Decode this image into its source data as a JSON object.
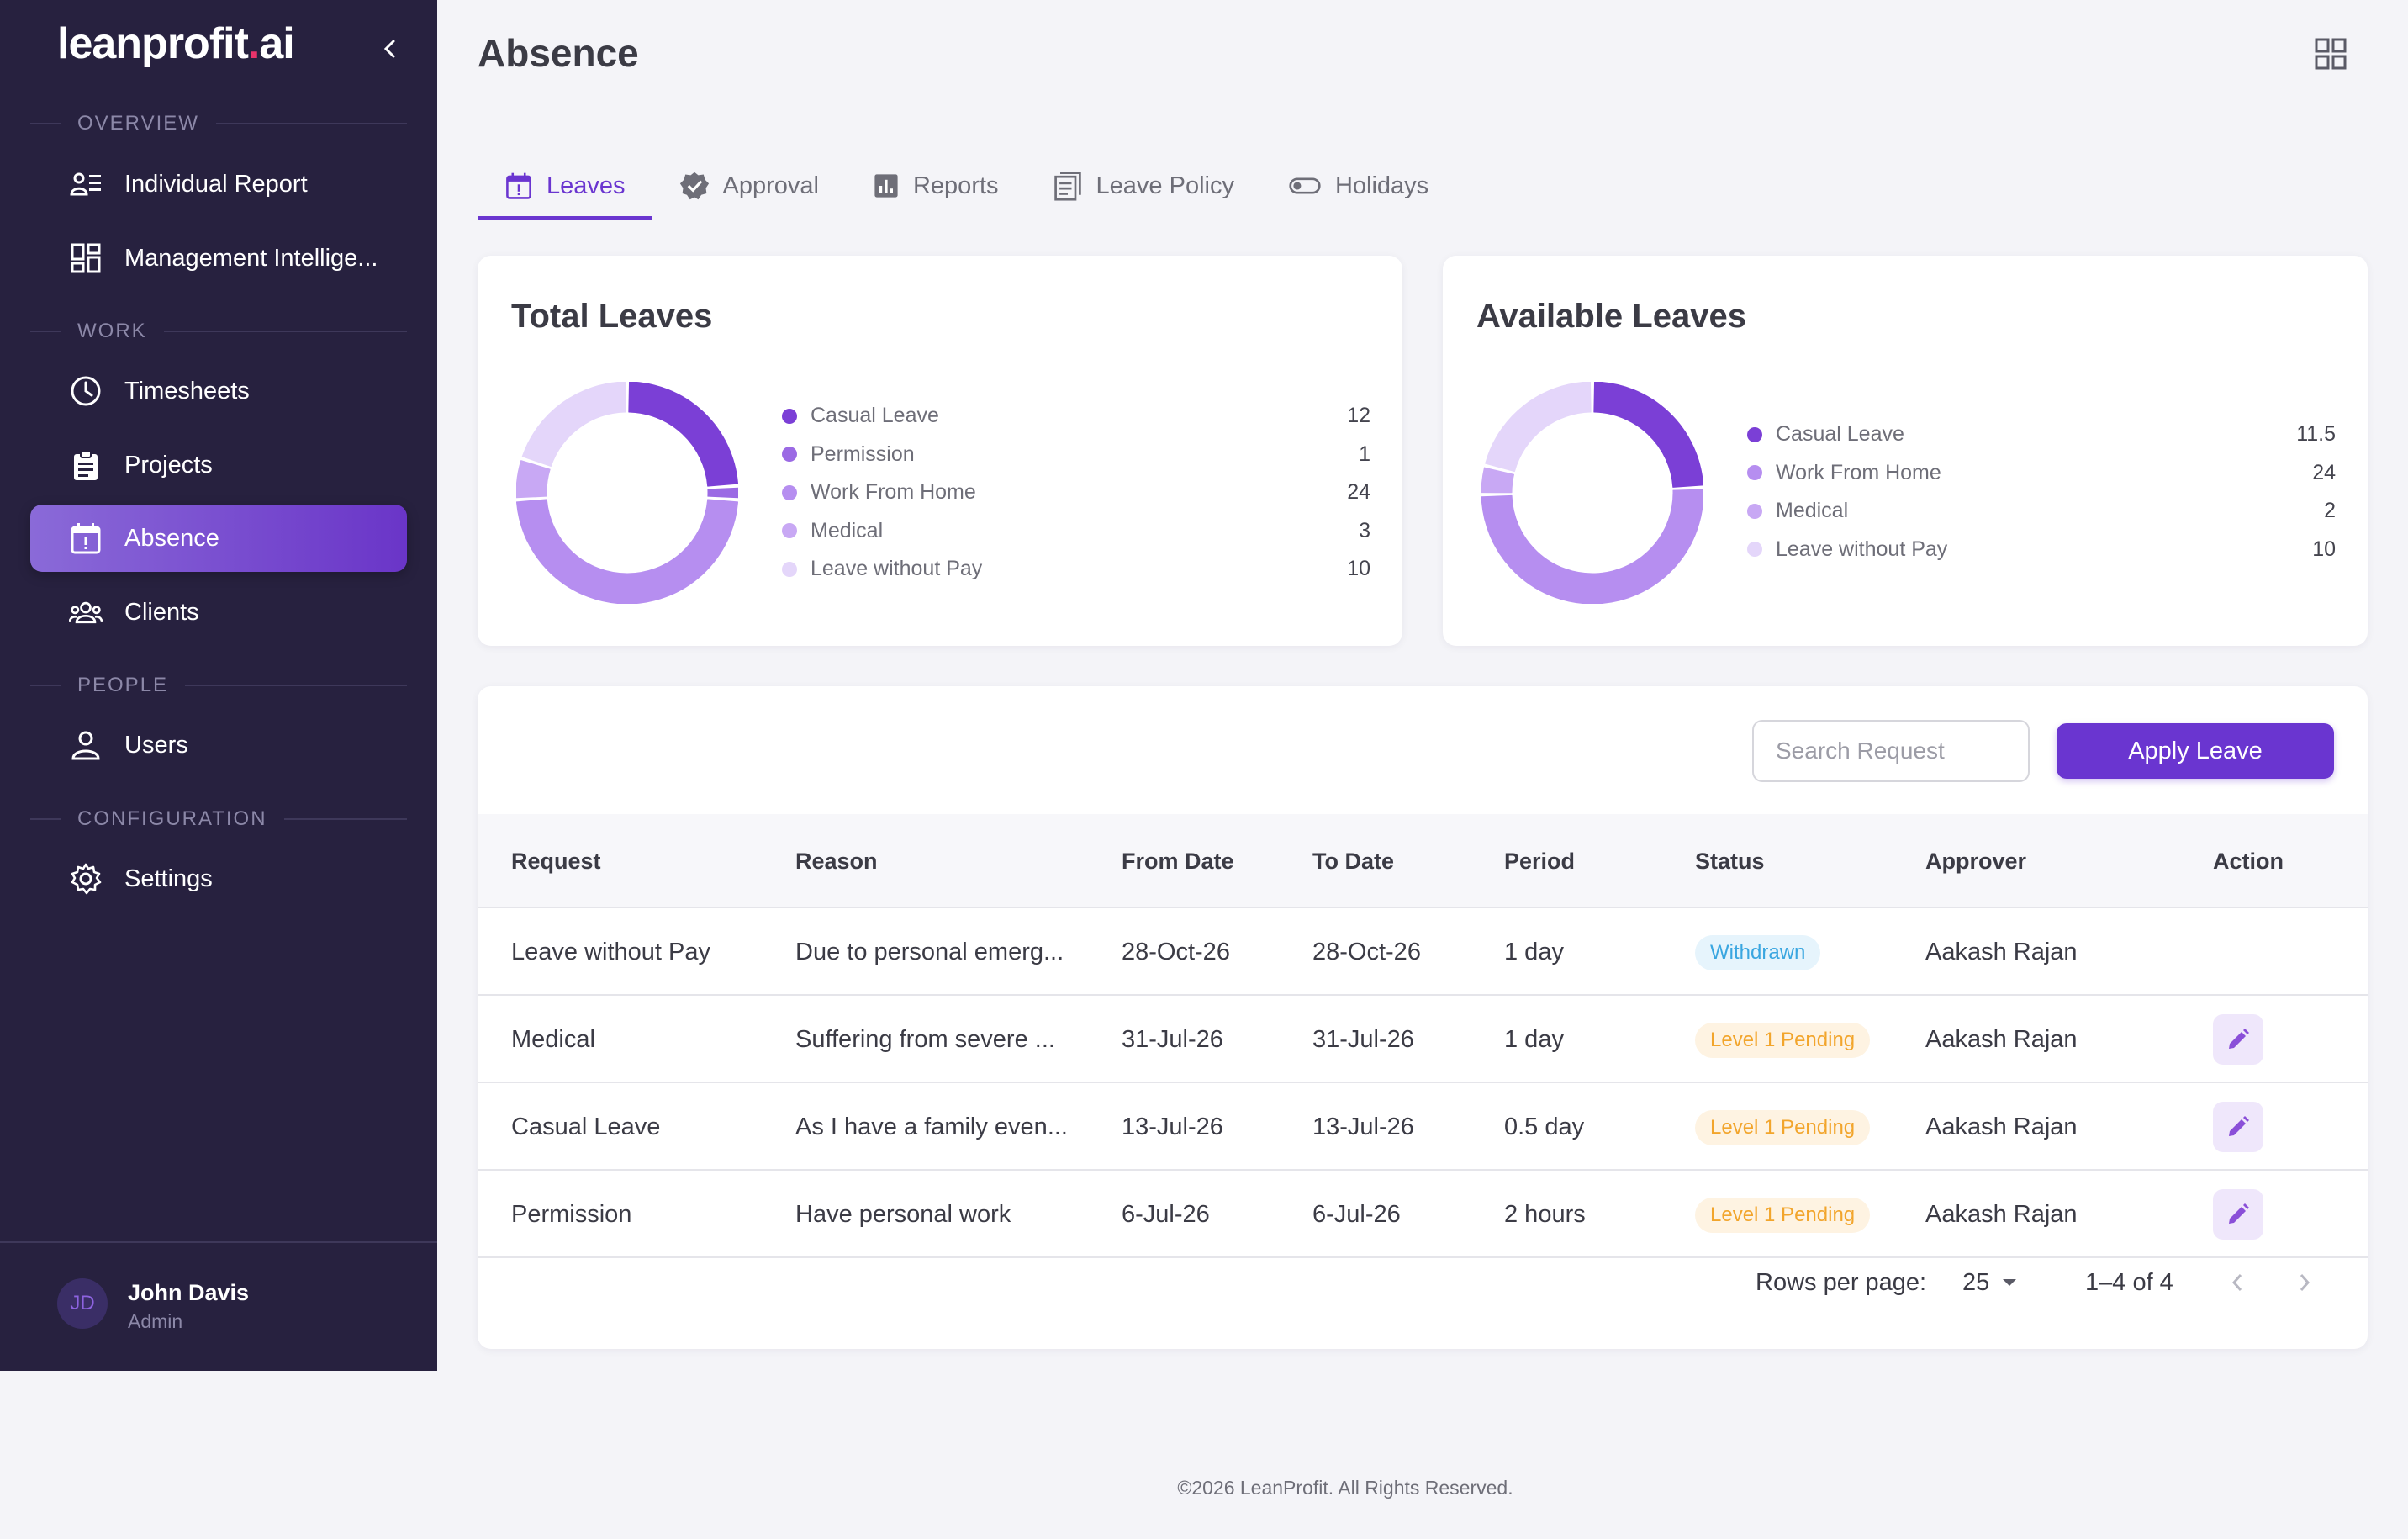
{
  "app": {
    "logo_main": "leanprofit",
    "logo_dot": ".",
    "logo_suffix": "ai",
    "brand_color": "#6a35d0"
  },
  "sidebar": {
    "sections": {
      "overview": "OVERVIEW",
      "work": "WORK",
      "people": "PEOPLE",
      "configuration": "CONFIGURATION"
    },
    "items": [
      {
        "label": "Individual Report",
        "icon": "report-list-icon"
      },
      {
        "label": "Management Intellige...",
        "icon": "dashboard-icon"
      },
      {
        "label": "Timesheets",
        "icon": "clock-icon"
      },
      {
        "label": "Projects",
        "icon": "clipboard-icon"
      },
      {
        "label": "Absence",
        "icon": "calendar-alert-icon",
        "active": true
      },
      {
        "label": "Clients",
        "icon": "group-icon"
      },
      {
        "label": "Users",
        "icon": "person-icon"
      },
      {
        "label": "Settings",
        "icon": "gear-icon"
      }
    ],
    "user": {
      "initials": "JD",
      "name": "John Davis",
      "role": "Admin"
    }
  },
  "header": {
    "title": "Absence"
  },
  "tabs": [
    {
      "label": "Leaves",
      "icon": "calendar-alert-icon",
      "active": true
    },
    {
      "label": "Approval",
      "icon": "verified-icon"
    },
    {
      "label": "Reports",
      "icon": "bar-chart-icon"
    },
    {
      "label": "Leave Policy",
      "icon": "document-icon"
    },
    {
      "label": "Holidays",
      "icon": "toggle-icon"
    }
  ],
  "chart_data": [
    {
      "type": "pie",
      "title": "Total Leaves",
      "categories": [
        "Casual Leave",
        "Permission",
        "Work From Home",
        "Medical",
        "Leave without Pay"
      ],
      "values": [
        12,
        1,
        24,
        3,
        10
      ],
      "value_labels": [
        "12",
        "1",
        "24",
        "3",
        "10"
      ],
      "colors": [
        "#7b3fd6",
        "#9b6ae4",
        "#b68ef0",
        "#c8a8f4",
        "#e4d6fa"
      ],
      "style": "donut",
      "legend": "right"
    },
    {
      "type": "pie",
      "title": "Available Leaves",
      "categories": [
        "Casual Leave",
        "Work From Home",
        "Medical",
        "Leave without Pay"
      ],
      "values": [
        11.5,
        24,
        2,
        10
      ],
      "value_labels": [
        "11.5",
        "24",
        "2",
        "10"
      ],
      "colors": [
        "#7b3fd6",
        "#b68ef0",
        "#c8a8f4",
        "#e4d6fa"
      ],
      "style": "donut",
      "legend": "right"
    }
  ],
  "table": {
    "search_placeholder": "Search Request",
    "apply_label": "Apply Leave",
    "columns": [
      "Request",
      "Reason",
      "From Date",
      "To Date",
      "Period",
      "Status",
      "Approver",
      "Action"
    ],
    "rows": [
      {
        "request": "Leave without Pay",
        "reason": "Due to personal emerg...",
        "from": "28-Oct-26",
        "to": "28-Oct-26",
        "period": "1 day",
        "status": "Withdrawn",
        "status_kind": "withdrawn",
        "approver": "Aakash Rajan",
        "editable": false
      },
      {
        "request": "Medical",
        "reason": "Suffering from severe ...",
        "from": "31-Jul-26",
        "to": "31-Jul-26",
        "period": "1 day",
        "status": "Level 1 Pending",
        "status_kind": "pending",
        "approver": "Aakash Rajan",
        "editable": true
      },
      {
        "request": "Casual Leave",
        "reason": "As I have a family even...",
        "from": "13-Jul-26",
        "to": "13-Jul-26",
        "period": "0.5 day",
        "status": "Level 1 Pending",
        "status_kind": "pending",
        "approver": "Aakash Rajan",
        "editable": true
      },
      {
        "request": "Permission",
        "reason": "Have personal work",
        "from": "6-Jul-26",
        "to": "6-Jul-26",
        "period": "2 hours",
        "status": "Level 1 Pending",
        "status_kind": "pending",
        "approver": "Aakash Rajan",
        "editable": true
      }
    ],
    "status_colors": {
      "withdrawn": "#3aa6e0",
      "pending": "#f2a52c"
    }
  },
  "pagination": {
    "rows_per_page_label": "Rows per page:",
    "rows_per_page": "25",
    "range": "1–4 of 4"
  },
  "footer": {
    "text": "©2026 LeanProfit. All Rights Reserved."
  }
}
